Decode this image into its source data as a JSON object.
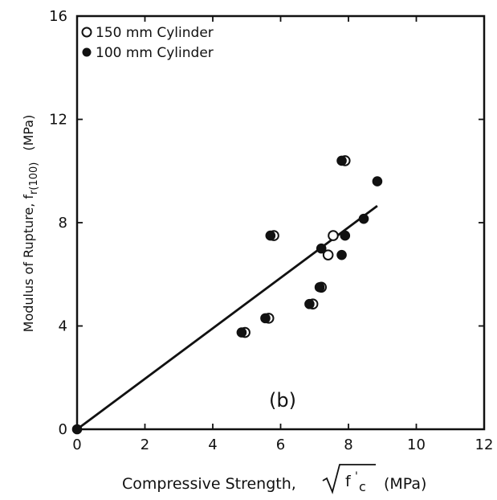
{
  "chart_data": {
    "type": "scatter",
    "xlabel": "Compressive Strength,",
    "xlabel_radicand": "f",
    "xlabel_radicand_sub": "c",
    "xlabel_radicand_sup": "'",
    "xlabel_unit": "(MPa)",
    "ylabel": "Modulus of Rupture, f",
    "ylabel_sub": "r(100)",
    "ylabel_unit": "(MPa)",
    "xlim": [
      0,
      12
    ],
    "ylim": [
      0,
      16
    ],
    "xticks": [
      0,
      2,
      4,
      6,
      8,
      10,
      12
    ],
    "yticks": [
      0,
      4,
      8,
      12,
      16
    ],
    "grid": false,
    "legend_position": "top-left",
    "annotation": "(b)",
    "series": [
      {
        "name": "150 mm Cylinder",
        "marker": "open-circle",
        "points": [
          [
            4.95,
            3.75
          ],
          [
            5.65,
            4.3
          ],
          [
            5.8,
            7.5
          ],
          [
            7.4,
            6.75
          ],
          [
            7.55,
            7.5
          ],
          [
            7.9,
            10.4
          ],
          [
            7.2,
            5.5
          ],
          [
            6.95,
            4.85
          ]
        ]
      },
      {
        "name": "100 mm Cylinder",
        "marker": "filled-circle",
        "points": [
          [
            4.85,
            3.75
          ],
          [
            5.55,
            4.3
          ],
          [
            5.7,
            7.5
          ],
          [
            6.85,
            4.85
          ],
          [
            7.15,
            5.5
          ],
          [
            7.2,
            7.0
          ],
          [
            7.8,
            6.75
          ],
          [
            7.9,
            7.5
          ],
          [
            7.8,
            10.4
          ],
          [
            8.45,
            8.15
          ],
          [
            8.85,
            9.6
          ],
          [
            0,
            0
          ]
        ]
      }
    ],
    "fit_line": {
      "x": [
        0,
        8.85
      ],
      "y": [
        0,
        8.65
      ]
    },
    "colors": {
      "ink": "#111111",
      "background": "#ffffff"
    }
  }
}
